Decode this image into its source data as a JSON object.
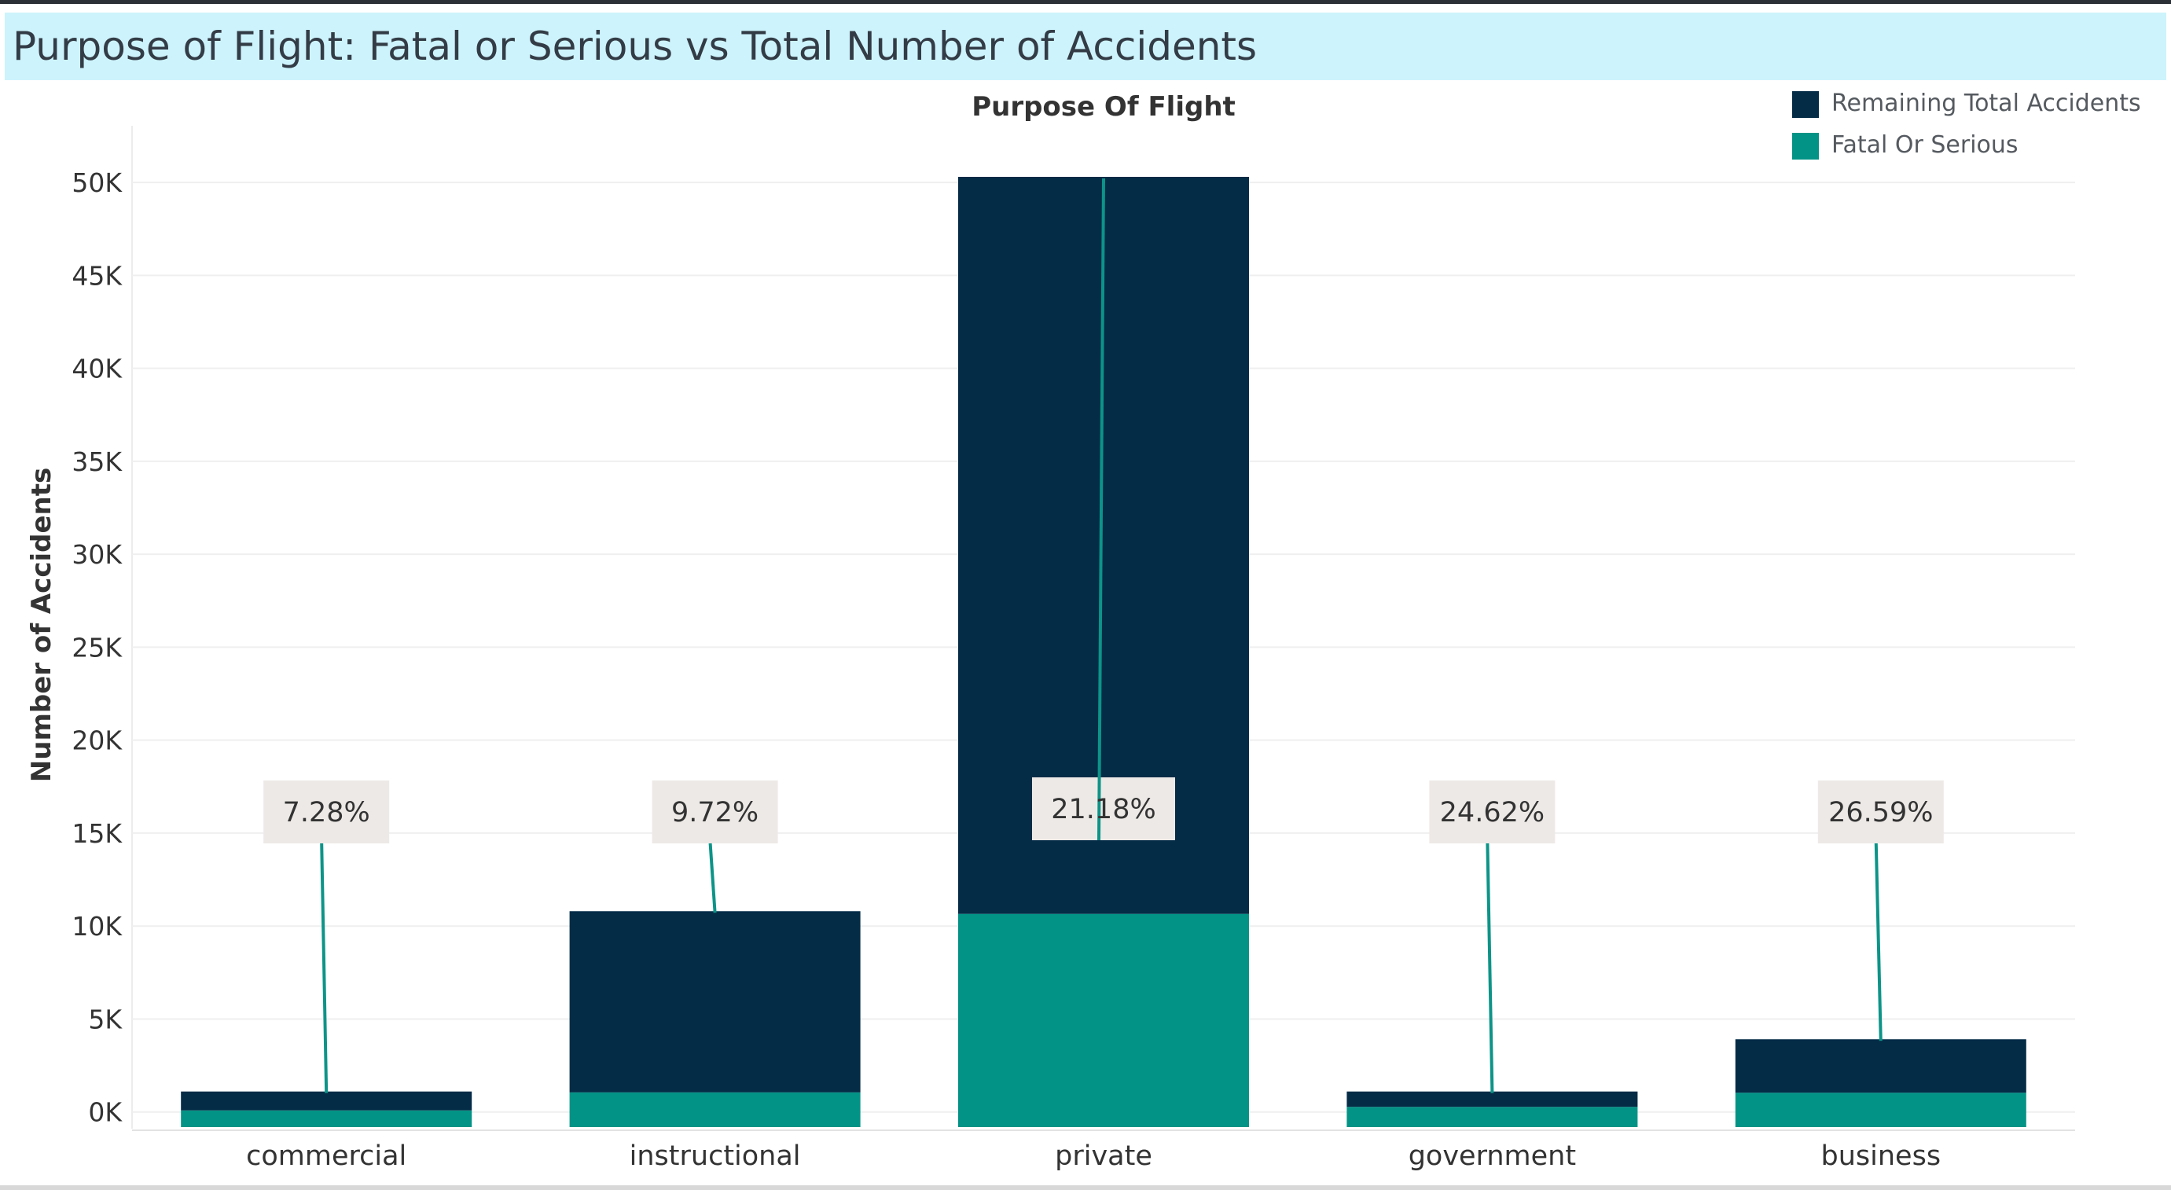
{
  "page": {
    "title": "Purpose of Flight: Fatal or Serious vs Total Number of Accidents"
  },
  "legend": {
    "items": [
      {
        "label": "Remaining Total Accidents",
        "color": "#042c47"
      },
      {
        "label": "Fatal Or Serious",
        "color": "#039386"
      }
    ]
  },
  "chart_data": {
    "type": "bar",
    "stacked": true,
    "title": "Purpose Of Flight",
    "xlabel": "",
    "ylabel": "Number of Accidents",
    "categories": [
      "commercial",
      "instructional",
      "private",
      "government",
      "business"
    ],
    "series": [
      {
        "name": "Fatal Or Serious",
        "color": "#039386",
        "values": [
          80,
          1050,
          10650,
          270,
          1030
        ]
      },
      {
        "name": "Remaining Total Accidents",
        "color": "#042c47",
        "values": [
          1020,
          9750,
          39650,
          830,
          2880
        ]
      }
    ],
    "data_labels": [
      "7.28%",
      "9.72%",
      "21.18%",
      "24.62%",
      "26.59%"
    ],
    "ylim": [
      -900,
      50300
    ],
    "yticks": [
      0,
      5000,
      10000,
      15000,
      20000,
      25000,
      30000,
      35000,
      40000,
      45000,
      50000
    ],
    "ytick_labels": [
      "0K",
      "5K",
      "10K",
      "15K",
      "20K",
      "25K",
      "30K",
      "35K",
      "40K",
      "45K",
      "50K"
    ],
    "grid": true,
    "legend_position": "top-right"
  }
}
